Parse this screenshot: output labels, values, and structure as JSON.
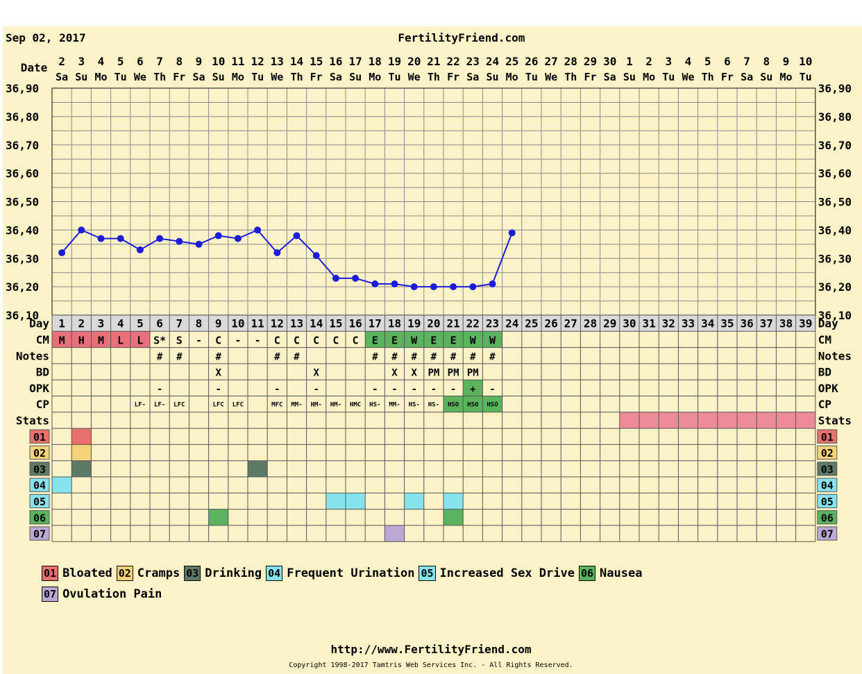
{
  "header": {
    "date": "Sep 02, 2017",
    "site": "FertilityFriend.com"
  },
  "row_labels": {
    "date": "Date",
    "day": "Day",
    "cm": "CM",
    "notes": "Notes",
    "bd": "BD",
    "opk": "OPK",
    "cp": "CP",
    "stats": "Stats"
  },
  "chart_data": {
    "type": "line",
    "title": "",
    "dates": [
      {
        "d": "2",
        "w": "Sa"
      },
      {
        "d": "3",
        "w": "Su"
      },
      {
        "d": "4",
        "w": "Mo"
      },
      {
        "d": "5",
        "w": "Tu"
      },
      {
        "d": "6",
        "w": "We"
      },
      {
        "d": "7",
        "w": "Th"
      },
      {
        "d": "8",
        "w": "Fr"
      },
      {
        "d": "9",
        "w": "Sa"
      },
      {
        "d": "10",
        "w": "Su"
      },
      {
        "d": "11",
        "w": "Mo"
      },
      {
        "d": "12",
        "w": "Tu"
      },
      {
        "d": "13",
        "w": "We"
      },
      {
        "d": "14",
        "w": "Th"
      },
      {
        "d": "15",
        "w": "Fr"
      },
      {
        "d": "16",
        "w": "Sa"
      },
      {
        "d": "17",
        "w": "Su"
      },
      {
        "d": "18",
        "w": "Mo"
      },
      {
        "d": "19",
        "w": "Tu"
      },
      {
        "d": "20",
        "w": "We"
      },
      {
        "d": "21",
        "w": "Th"
      },
      {
        "d": "22",
        "w": "Fr"
      },
      {
        "d": "23",
        "w": "Sa"
      },
      {
        "d": "24",
        "w": "Su"
      },
      {
        "d": "25",
        "w": "Mo"
      },
      {
        "d": "26",
        "w": "Tu"
      },
      {
        "d": "27",
        "w": "We"
      },
      {
        "d": "28",
        "w": "Th"
      },
      {
        "d": "29",
        "w": "Fr"
      },
      {
        "d": "30",
        "w": "Sa"
      },
      {
        "d": "1",
        "w": "Su"
      },
      {
        "d": "2",
        "w": "Mo"
      },
      {
        "d": "3",
        "w": "Tu"
      },
      {
        "d": "4",
        "w": "We"
      },
      {
        "d": "5",
        "w": "Th"
      },
      {
        "d": "6",
        "w": "Fr"
      },
      {
        "d": "7",
        "w": "Sa"
      },
      {
        "d": "8",
        "w": "Su"
      },
      {
        "d": "9",
        "w": "Mo"
      },
      {
        "d": "10",
        "w": "Tu"
      }
    ],
    "days": [
      "1",
      "2",
      "3",
      "4",
      "5",
      "6",
      "7",
      "8",
      "9",
      "10",
      "11",
      "12",
      "13",
      "14",
      "15",
      "16",
      "17",
      "18",
      "19",
      "20",
      "21",
      "22",
      "23",
      "24",
      "25",
      "26",
      "27",
      "28",
      "29",
      "30",
      "31",
      "32",
      "33",
      "34",
      "35",
      "36",
      "37",
      "38",
      "39"
    ],
    "y_ticks": [
      "36,90",
      "36,80",
      "36,70",
      "36,60",
      "36,50",
      "36,40",
      "36,30",
      "36,20",
      "36,10"
    ],
    "ylim": [
      36.1,
      36.9
    ],
    "temperature": {
      "color": "#1c1cdc",
      "values": [
        36.32,
        36.4,
        36.37,
        36.37,
        36.33,
        36.37,
        36.36,
        36.35,
        36.38,
        36.37,
        36.4,
        36.32,
        36.38,
        36.31,
        36.23,
        36.23,
        36.21,
        36.21,
        36.2,
        36.2,
        36.2,
        36.2,
        36.21,
        36.39
      ]
    },
    "cm": [
      "M",
      "H",
      "M",
      "L",
      "L",
      "S*",
      "S",
      "-",
      "C",
      "-",
      "-",
      "C",
      "C",
      "C",
      "C",
      "C",
      "E",
      "E",
      "W",
      "E",
      "E",
      "W",
      "W"
    ],
    "notes": [
      "",
      "",
      "",
      "",
      "",
      "#",
      "#",
      "",
      "#",
      "",
      "",
      "#",
      "#",
      "",
      "",
      "",
      "#",
      "#",
      "#",
      "#",
      "#",
      "#",
      "#"
    ],
    "bd": [
      "",
      "",
      "",
      "",
      "",
      "",
      "",
      "",
      "X",
      "",
      "",
      "",
      "",
      "X",
      "",
      "",
      "",
      "X",
      "X",
      "PM",
      "PM",
      "PM",
      ""
    ],
    "opk": [
      "",
      "",
      "",
      "",
      "",
      "-",
      "",
      "",
      "-",
      "",
      "",
      "-",
      "",
      "-",
      "",
      "",
      "-",
      "-",
      "-",
      "-",
      "-",
      "+",
      "-"
    ],
    "cp": [
      "",
      "",
      "",
      "",
      "LF-",
      "LF-",
      "LFC",
      "",
      "LFC",
      "LFC",
      "",
      "MFC",
      "MM-",
      "HM-",
      "HM-",
      "HMC",
      "HS-",
      "MM-",
      "HS-",
      "HS-",
      "HSO",
      "HSO",
      "HSO"
    ],
    "stats_range": [
      30,
      39
    ],
    "symptoms": [
      {
        "code": "01",
        "label": "Bloated",
        "color": "#e8706e",
        "days": [
          2
        ]
      },
      {
        "code": "02",
        "label": "Cramps",
        "color": "#f6d27a",
        "days": [
          2
        ]
      },
      {
        "code": "03",
        "label": "Drinking",
        "color": "#5e7a66",
        "days": [
          2,
          11
        ]
      },
      {
        "code": "04",
        "label": "Frequent Urination",
        "color": "#86e3ee",
        "days": [
          1
        ]
      },
      {
        "code": "05",
        "label": "Increased Sex Drive",
        "color": "#86e3ee",
        "days": [
          15,
          16,
          19,
          21
        ]
      },
      {
        "code": "06",
        "label": "Nausea",
        "color": "#5cb35e",
        "days": [
          9,
          21
        ]
      },
      {
        "code": "07",
        "label": "Ovulation Pain",
        "color": "#bba8d4",
        "days": [
          18
        ]
      }
    ],
    "colors": {
      "cm_pink": "#e8707a",
      "cm_green": "#5cb35e",
      "stats_pink": "#ec8c96",
      "panel_bg": "#fbf2c8",
      "grid": "#8a8a8a"
    }
  },
  "footer": {
    "url": "http://www.FertilityFriend.com",
    "copyright": "Copyright 1998-2017 Tamtris Web Services Inc. - All Rights Reserved."
  }
}
